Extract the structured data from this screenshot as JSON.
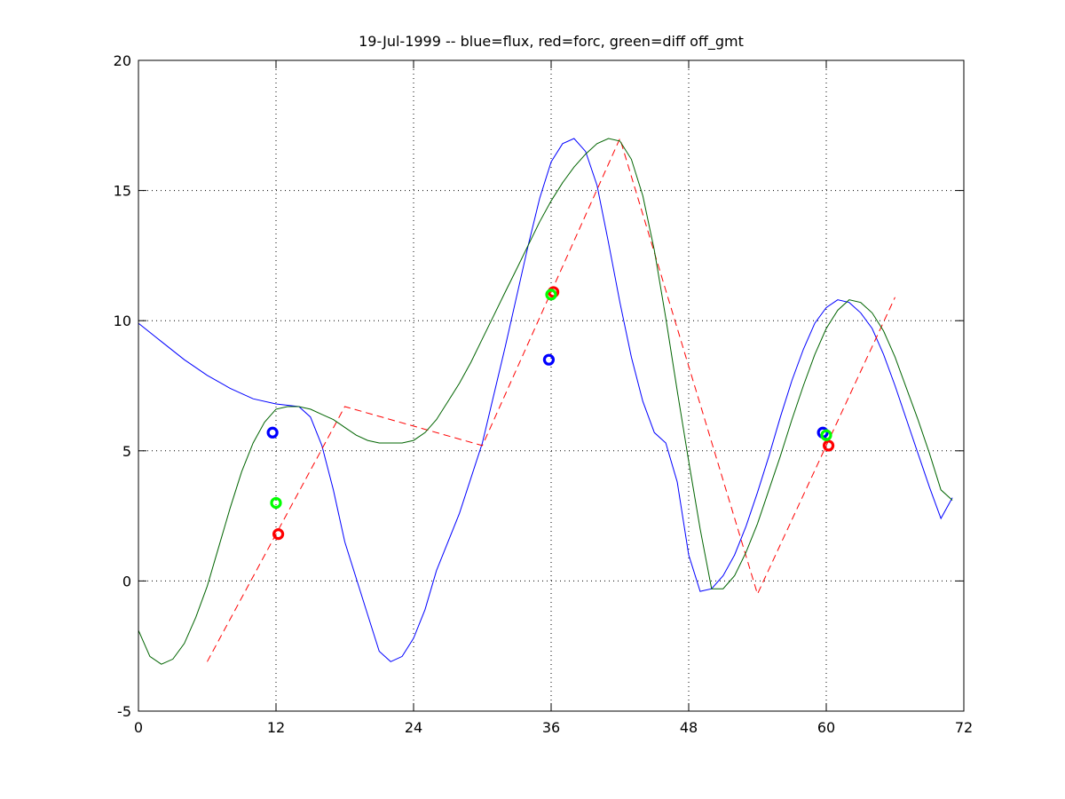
{
  "chart_data": {
    "type": "line",
    "title": "19-Jul-1999 -- blue=flux, red=forc, green=diff off_gmt",
    "xlabel": "",
    "ylabel": "",
    "xlim": [
      0,
      72
    ],
    "ylim": [
      -5,
      20
    ],
    "xticks": [
      0,
      12,
      24,
      36,
      48,
      60,
      72
    ],
    "yticks": [
      -5,
      0,
      5,
      10,
      15,
      20
    ],
    "grid": true,
    "colors": {
      "blue": "#0000ff",
      "red": "#ff0000",
      "green": "#006400",
      "light_green": "#00ff00"
    },
    "series": [
      {
        "name": "flux",
        "color": "#0000ff",
        "style": "solid",
        "x": [
          0,
          2,
          4,
          6,
          8,
          10,
          12,
          14,
          15,
          16,
          17,
          18,
          20,
          21,
          22,
          23,
          24,
          25,
          26,
          28,
          30,
          32,
          34,
          35,
          36,
          37,
          38,
          39,
          40,
          41,
          42,
          43,
          44,
          45,
          46,
          47,
          48,
          49,
          50,
          51,
          52,
          53,
          54,
          55,
          56,
          57,
          58,
          59,
          60,
          61,
          62,
          63,
          64,
          65,
          66,
          67,
          68,
          69,
          70,
          71
        ],
        "y": [
          9.9,
          9.2,
          8.5,
          7.9,
          7.4,
          7.0,
          6.8,
          6.7,
          6.3,
          5.2,
          3.5,
          1.5,
          -1.3,
          -2.7,
          -3.1,
          -2.9,
          -2.2,
          -1.1,
          0.4,
          2.6,
          5.3,
          9.0,
          12.9,
          14.7,
          16.1,
          16.8,
          17.0,
          16.5,
          15.2,
          13.0,
          10.7,
          8.6,
          6.9,
          5.7,
          5.3,
          3.8,
          1.0,
          -0.4,
          -0.3,
          0.2,
          1.0,
          2.1,
          3.4,
          4.8,
          6.3,
          7.7,
          8.9,
          9.9,
          10.5,
          10.8,
          10.7,
          10.3,
          9.7,
          8.7,
          7.5,
          6.2,
          4.9,
          3.6,
          2.4,
          3.2
        ]
      },
      {
        "name": "forc",
        "color": "#ff0000",
        "style": "dashed",
        "x": [
          6,
          18,
          30,
          42,
          54,
          66
        ],
        "y": [
          -3.1,
          6.7,
          5.2,
          17.0,
          -0.5,
          10.9
        ]
      },
      {
        "name": "diff",
        "color": "#006400",
        "style": "solid",
        "x": [
          0,
          1,
          2,
          3,
          4,
          5,
          6,
          7,
          8,
          9,
          10,
          11,
          12,
          13,
          14,
          15,
          16,
          17,
          18,
          19,
          20,
          21,
          22,
          23,
          24,
          25,
          26,
          27,
          28,
          29,
          30,
          31,
          32,
          33,
          34,
          35,
          36,
          37,
          38,
          39,
          40,
          41,
          42,
          43,
          44,
          45,
          46,
          47,
          48,
          49,
          50,
          51,
          52,
          53,
          54,
          55,
          56,
          57,
          58,
          59,
          60,
          61,
          62,
          63,
          64,
          65,
          66,
          67,
          68,
          69,
          70,
          71
        ],
        "y": [
          -1.9,
          -2.9,
          -3.2,
          -3.0,
          -2.4,
          -1.4,
          -0.2,
          1.3,
          2.8,
          4.2,
          5.3,
          6.1,
          6.6,
          6.7,
          6.7,
          6.6,
          6.4,
          6.2,
          5.9,
          5.6,
          5.4,
          5.3,
          5.3,
          5.3,
          5.4,
          5.7,
          6.2,
          6.9,
          7.6,
          8.4,
          9.3,
          10.2,
          11.1,
          12.0,
          12.9,
          13.8,
          14.6,
          15.3,
          15.9,
          16.4,
          16.8,
          17.0,
          16.9,
          16.2,
          14.8,
          12.7,
          10.1,
          7.3,
          4.6,
          2.0,
          -0.3,
          -0.3,
          0.2,
          1.1,
          2.2,
          3.5,
          4.8,
          6.2,
          7.5,
          8.7,
          9.7,
          10.4,
          10.8,
          10.7,
          10.3,
          9.6,
          8.6,
          7.4,
          6.2,
          4.9,
          3.5,
          3.1
        ]
      }
    ],
    "markers": [
      {
        "name": "flux",
        "color": "#0000ff",
        "points": [
          [
            11.7,
            5.7
          ],
          [
            35.8,
            8.5
          ],
          [
            59.7,
            5.7
          ]
        ]
      },
      {
        "name": "forc",
        "color": "#ff0000",
        "points": [
          [
            12.2,
            1.8
          ],
          [
            36.2,
            11.1
          ],
          [
            60.2,
            5.2
          ]
        ]
      },
      {
        "name": "diff",
        "color": "#00ff00",
        "points": [
          [
            12.0,
            3.0
          ],
          [
            36.0,
            11.0
          ],
          [
            60.0,
            5.6
          ]
        ]
      }
    ]
  }
}
